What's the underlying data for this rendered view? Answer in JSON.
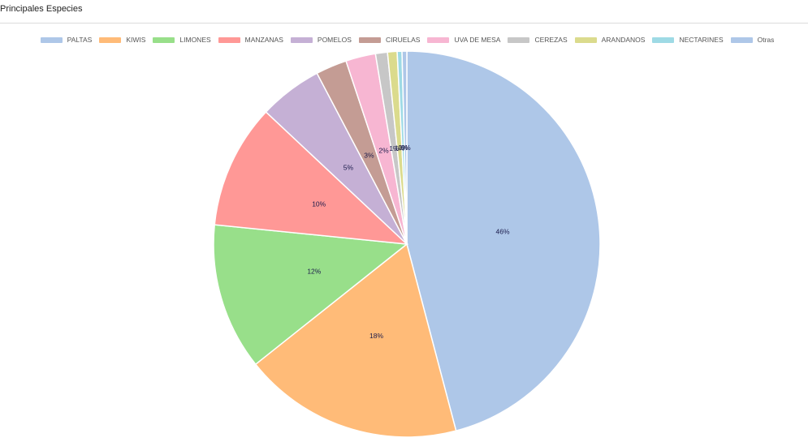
{
  "panel": {
    "title": "Principales Especies"
  },
  "chart_data": {
    "type": "pie",
    "categories": [
      "PALTAS",
      "KIWIS",
      "LIMONES",
      "MANZANAS",
      "POMELOS",
      "CIRUELAS",
      "UVA DE MESA",
      "CEREZAS",
      "ARANDANOS",
      "NECTARINES",
      "Otras"
    ],
    "values": [
      45.9,
      18.4,
      12.3,
      10.4,
      5.3,
      2.6,
      2.5,
      1.0,
      0.8,
      0.4,
      0.4
    ],
    "labels": [
      "46%",
      "18%",
      "12%",
      "10%",
      "5%",
      "3%",
      "2%",
      "1%",
      "1%",
      "0%",
      "0%"
    ],
    "colors": [
      "#aec7e8",
      "#ffbb78",
      "#98df8a",
      "#ff9896",
      "#c5b0d5",
      "#c49c94",
      "#f7b6d2",
      "#c7c7c7",
      "#dbdb8d",
      "#9edae5",
      "#aec7e8"
    ],
    "title": "",
    "legend_position": "top"
  }
}
